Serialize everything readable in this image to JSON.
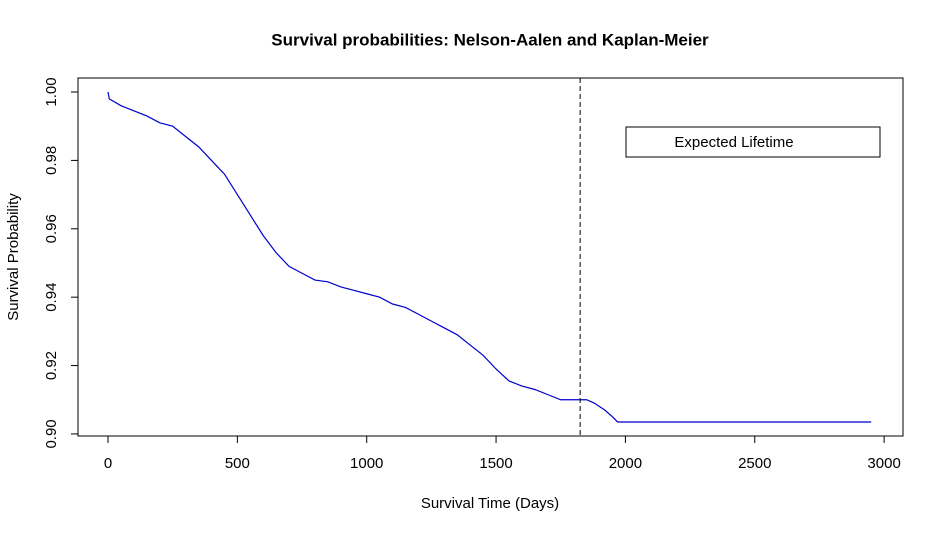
{
  "chart_data": {
    "type": "line",
    "title": "Survival probabilities: Nelson-Aalen and Kaplan-Meier",
    "x_label": "Survival Time (Days)",
    "y_label": "Survival Probability",
    "xlim": [
      -116,
      3073
    ],
    "ylim": [
      0.8994,
      1.0041
    ],
    "xticks": [
      0,
      500,
      1000,
      1500,
      2000,
      2500,
      3000
    ],
    "yticks": [
      {
        "value": 0.9,
        "label": "0.90"
      },
      {
        "value": 0.92,
        "label": "0.92"
      },
      {
        "value": 0.94,
        "label": "0.94"
      },
      {
        "value": 0.96,
        "label": "0.96"
      },
      {
        "value": 0.98,
        "label": "0.98"
      },
      {
        "value": 1.0,
        "label": "1.00"
      }
    ],
    "series": [
      {
        "color": "#0000cc",
        "x": [
          0,
          5,
          50,
          100,
          150,
          200,
          250,
          300,
          350,
          400,
          450,
          500,
          550,
          600,
          650,
          700,
          750,
          800,
          850,
          900,
          950,
          1000,
          1050,
          1100,
          1150,
          1200,
          1250,
          1300,
          1350,
          1400,
          1450,
          1500,
          1550,
          1600,
          1650,
          1700,
          1750,
          1800,
          1850,
          1880,
          1920,
          1950,
          1970,
          2950
        ],
        "values": [
          1.0,
          0.998,
          0.996,
          0.9945,
          0.993,
          0.991,
          0.99,
          0.987,
          0.984,
          0.98,
          0.976,
          0.97,
          0.964,
          0.958,
          0.953,
          0.949,
          0.947,
          0.945,
          0.9445,
          0.943,
          0.942,
          0.941,
          0.94,
          0.938,
          0.937,
          0.935,
          0.933,
          0.931,
          0.929,
          0.926,
          0.923,
          0.919,
          0.9155,
          0.914,
          0.913,
          0.9115,
          0.91,
          0.91,
          0.91,
          0.909,
          0.907,
          0.905,
          0.9035,
          0.9035
        ]
      }
    ],
    "vline": {
      "x": 1825,
      "dashed": true,
      "color": "#000000"
    },
    "legend": {
      "entries": [
        "Expected Lifetime"
      ],
      "position": "top right"
    }
  }
}
